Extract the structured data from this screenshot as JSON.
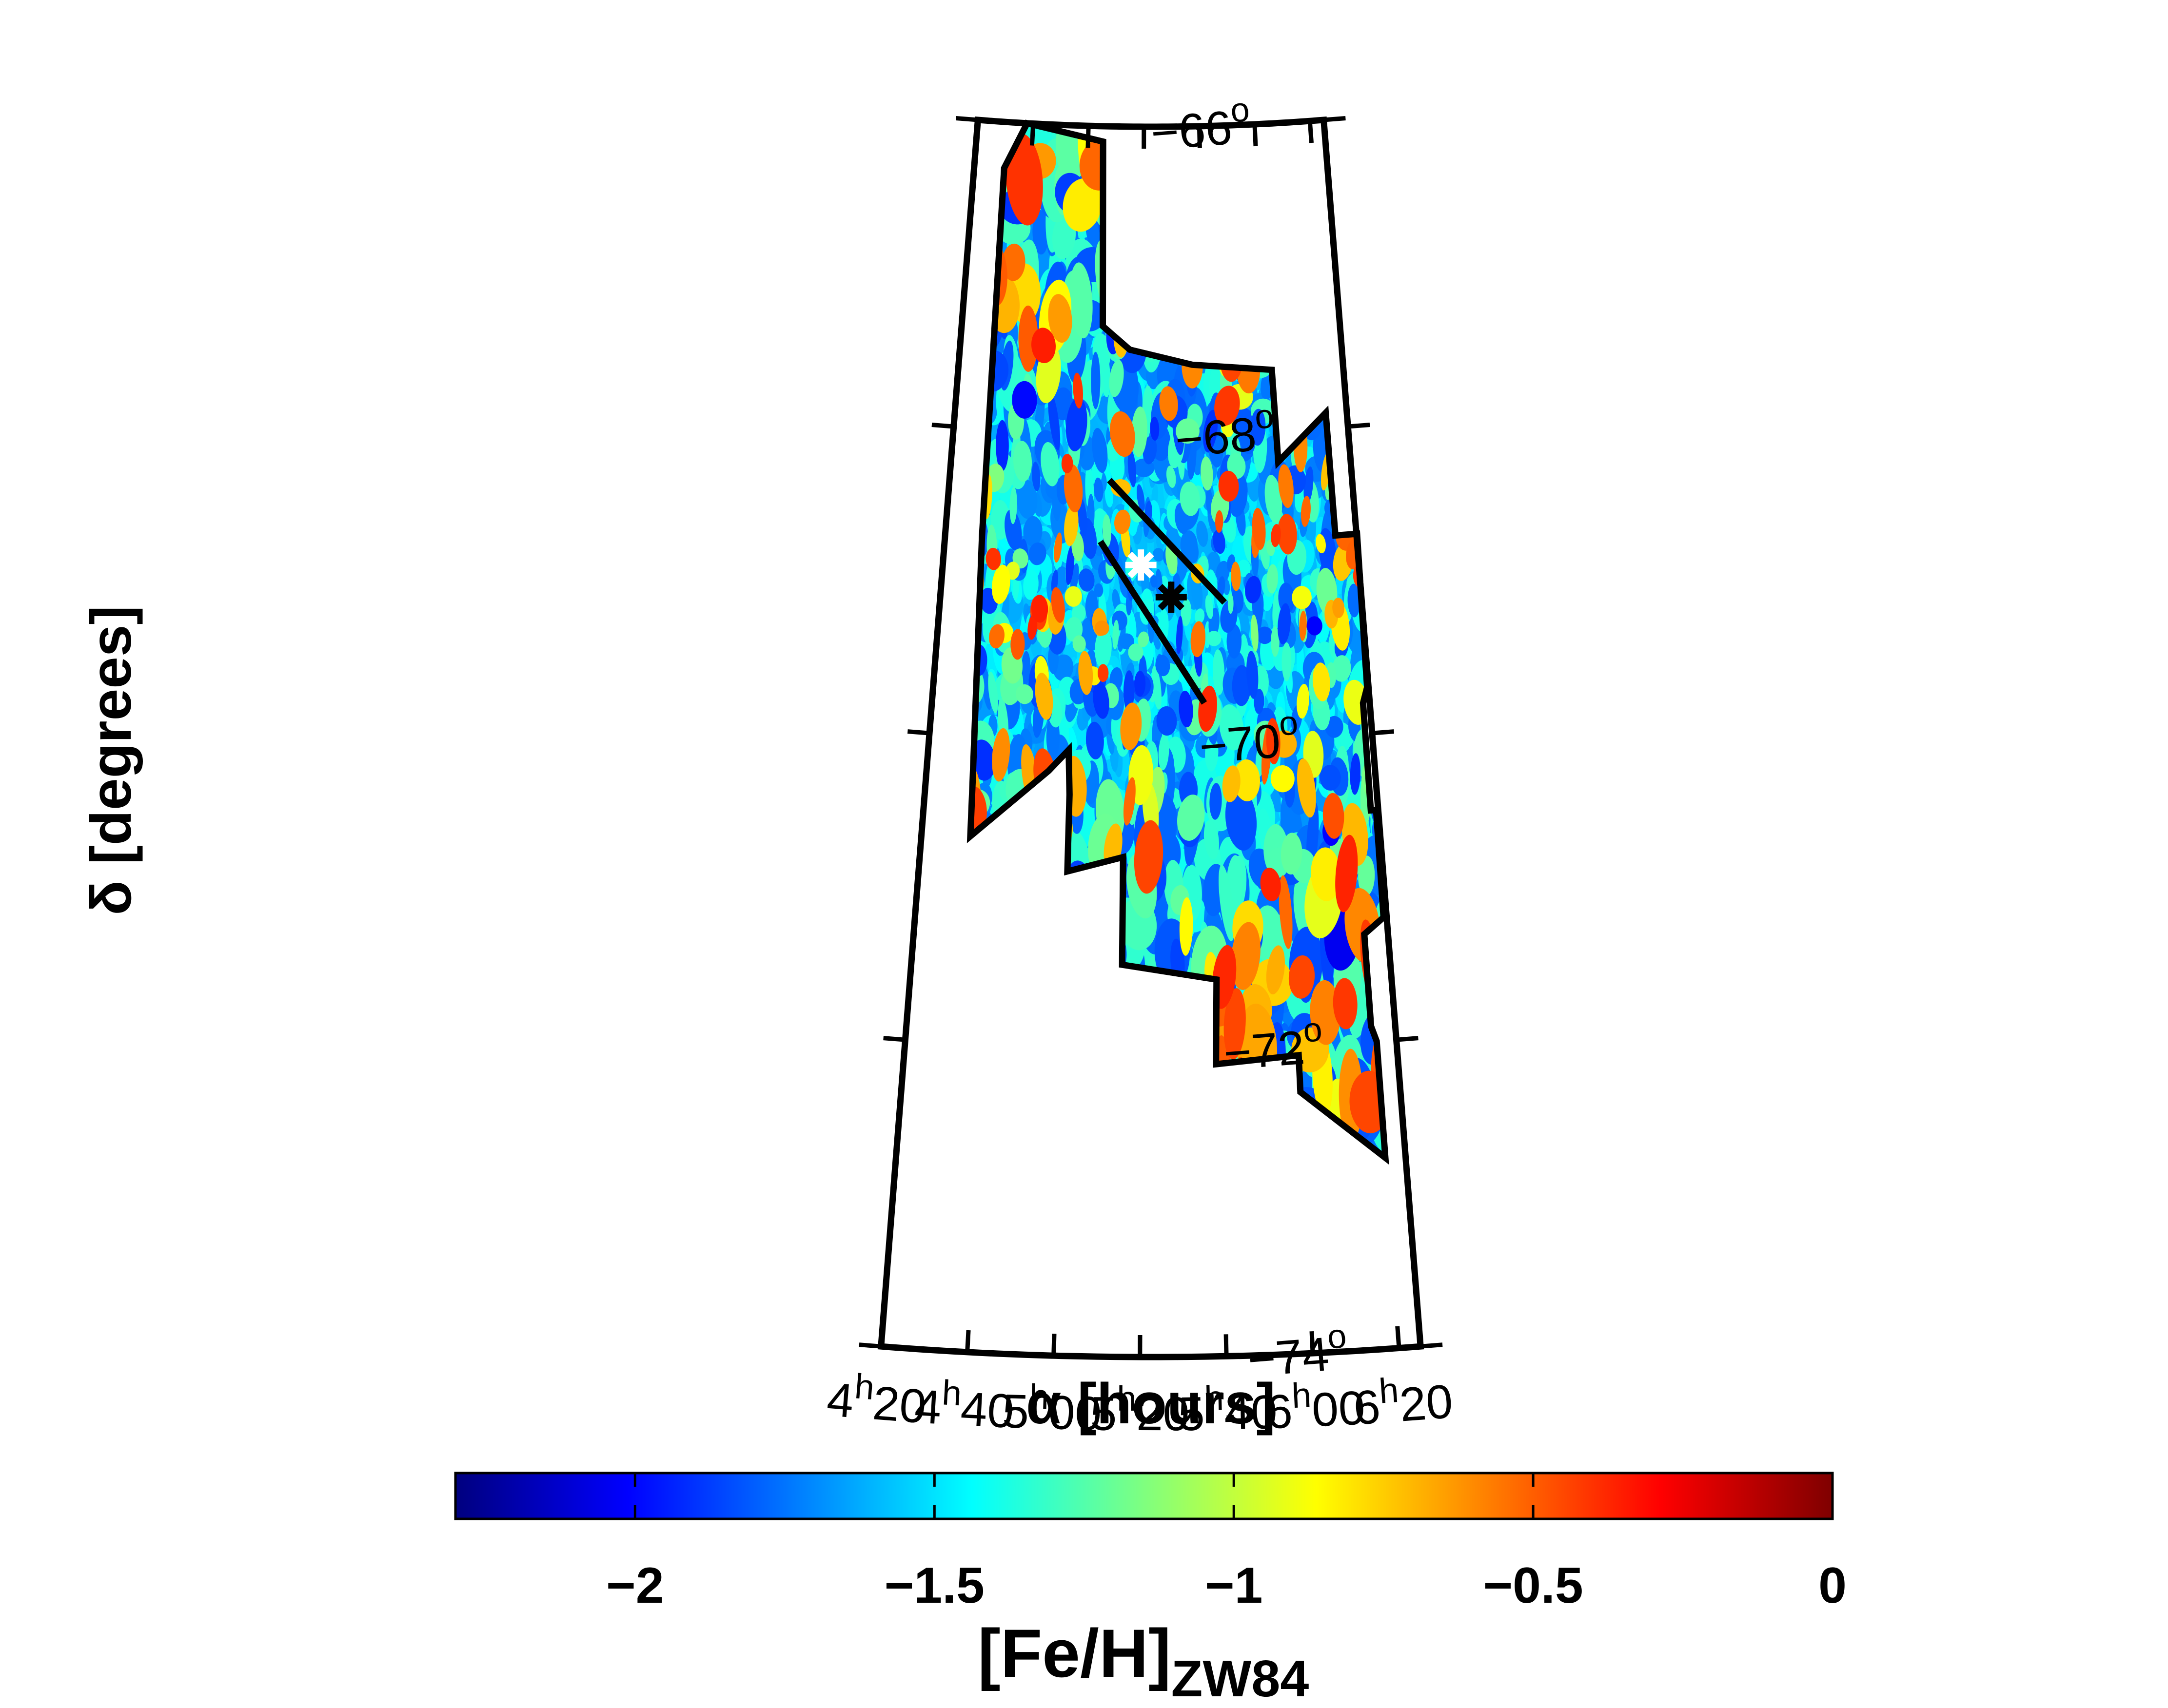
{
  "chart_data": {
    "type": "heatmap",
    "title": "",
    "projection": "polar (conic) RA-Dec sky map",
    "xlabel": "α [hours]",
    "ylabel": "δ [degrees]",
    "xlim_hours": [
      4.3333,
      6.4167
    ],
    "ylim_degrees": [
      -74,
      -66
    ],
    "ra_ticks": [
      {
        "hours": 6.3333,
        "h": "6",
        "m": "20"
      },
      {
        "hours": 6.0,
        "h": "6",
        "m": "00"
      },
      {
        "hours": 5.6667,
        "h": "5",
        "m": "40"
      },
      {
        "hours": 5.3333,
        "h": "5",
        "m": "20"
      },
      {
        "hours": 5.0,
        "h": "5",
        "m": "00"
      },
      {
        "hours": 4.6667,
        "h": "4",
        "m": "40"
      },
      {
        "hours": 4.3333,
        "h": "4",
        "m": "20"
      }
    ],
    "dec_ticks": [
      {
        "deg": -66,
        "label": "−66",
        "sup": "o"
      },
      {
        "deg": -68,
        "label": "−68",
        "sup": "o"
      },
      {
        "deg": -70,
        "label": "−70",
        "sup": "o"
      },
      {
        "deg": -72,
        "label": "−72",
        "sup": "o"
      },
      {
        "deg": -74,
        "label": "−74",
        "sup": "o"
      }
    ],
    "survey_footprint": [
      [
        6.334,
        -72.76
      ],
      [
        6.333,
        -72.0
      ],
      [
        6.314,
        -71.9
      ],
      [
        6.313,
        -71.3
      ],
      [
        6.403,
        -71.2
      ],
      [
        6.407,
        -70.5
      ],
      [
        6.383,
        -70.5
      ],
      [
        6.385,
        -69.8
      ],
      [
        6.41,
        -69.7
      ],
      [
        6.42,
        -68.7
      ],
      [
        6.31,
        -68.7
      ],
      [
        6.305,
        -67.9
      ],
      [
        6.04,
        -68.2
      ],
      [
        6.03,
        -67.6
      ],
      [
        5.6,
        -67.55
      ],
      [
        5.26,
        -67.45
      ],
      [
        5.11,
        -67.3
      ],
      [
        5.09,
        -66.1
      ],
      [
        4.63,
        -66.0
      ],
      [
        4.51,
        -66.3
      ],
      [
        4.52,
        -68.7
      ],
      [
        4.55,
        -70.3
      ],
      [
        4.555,
        -70.65
      ],
      [
        4.9,
        -70.2
      ],
      [
        4.99,
        -70.06
      ],
      [
        5.0,
        -70.35
      ],
      [
        5.0,
        -70.85
      ],
      [
        5.25,
        -70.75
      ],
      [
        5.25,
        -71.45
      ],
      [
        5.66,
        -71.55
      ],
      [
        5.65,
        -72.1
      ],
      [
        6.0,
        -72.06
      ],
      [
        6.0,
        -72.3
      ],
      [
        6.334,
        -72.76
      ]
    ],
    "strip_lines": [
      {
        "start": [
          5.74,
          -69.1
        ],
        "end": [
          5.16,
          -68.3
        ]
      },
      {
        "start": [
          5.63,
          -69.75
        ],
        "end": [
          5.12,
          -68.7
        ]
      }
    ],
    "markers": [
      {
        "ra": 5.476,
        "dec": -69.06,
        "color": "#000000"
      },
      {
        "ra": 5.325,
        "dec": -68.85,
        "color": "#ffffff"
      }
    ],
    "colorbar": {
      "label_main": "[Fe/H]",
      "label_sub": "ZW84",
      "range": [
        -2.3,
        0
      ],
      "ticks": [
        {
          "value": -2,
          "label": "−2"
        },
        {
          "value": -1.5,
          "label": "−1.5"
        },
        {
          "value": -1,
          "label": "−1"
        },
        {
          "value": -0.5,
          "label": "−0.5"
        },
        {
          "value": 0,
          "label": "0"
        }
      ],
      "colormap": "jet",
      "colormap_stops": [
        "#00007f",
        "#0000ff",
        "#007fff",
        "#00ffff",
        "#7fff7f",
        "#ffff00",
        "#ff7f00",
        "#ff0000",
        "#7f0000"
      ]
    },
    "map_distribution": {
      "dominant_value": -1.55,
      "spread": 0.28
    }
  }
}
